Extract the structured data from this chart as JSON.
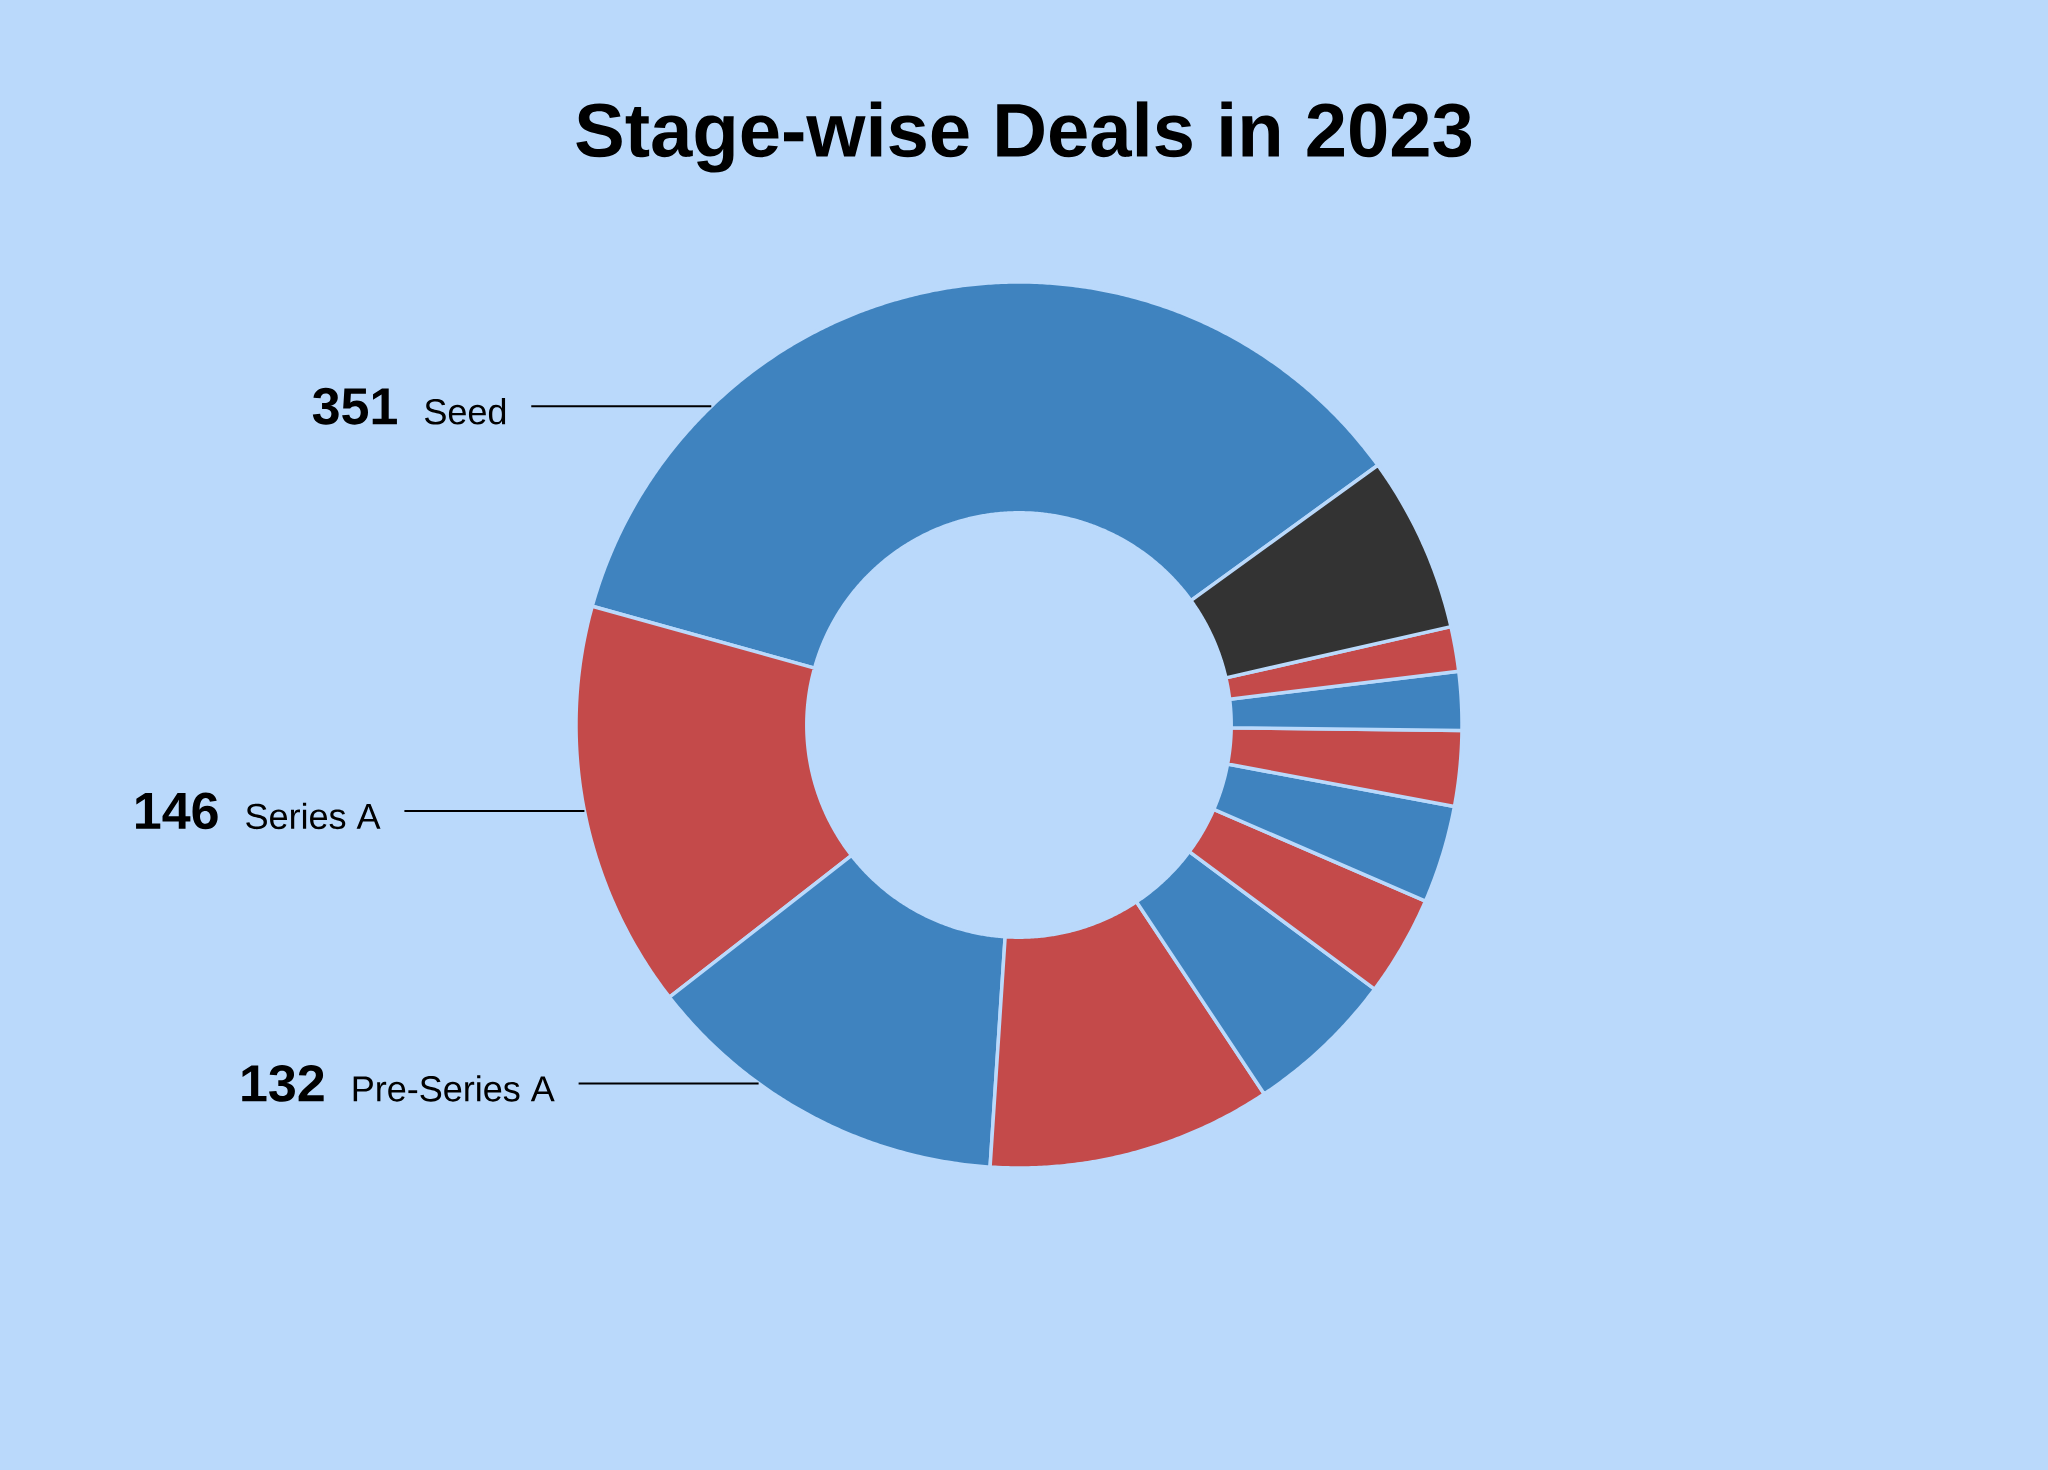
{
  "chart_data": {
    "type": "donut",
    "title": "Stage-wise Deals in 2023",
    "categories": [
      "Seed",
      "Series A",
      "Pre-Series A",
      null,
      null,
      null,
      null,
      null,
      null,
      null,
      null
    ],
    "values": [
      351,
      146,
      132,
      102,
      54,
      36,
      35,
      27,
      21,
      16,
      63
    ],
    "colors": [
      "#3f83bf",
      "#c44a4a",
      "#3f83bf",
      "#c44a4a",
      "#3f83bf",
      "#c44a4a",
      "#3f83bf",
      "#c44a4a",
      "#3f83bf",
      "#c44a4a",
      "#333333"
    ],
    "value_labels": [
      "351",
      "146",
      "132",
      null,
      null,
      null,
      null,
      null,
      null,
      null,
      null
    ]
  }
}
